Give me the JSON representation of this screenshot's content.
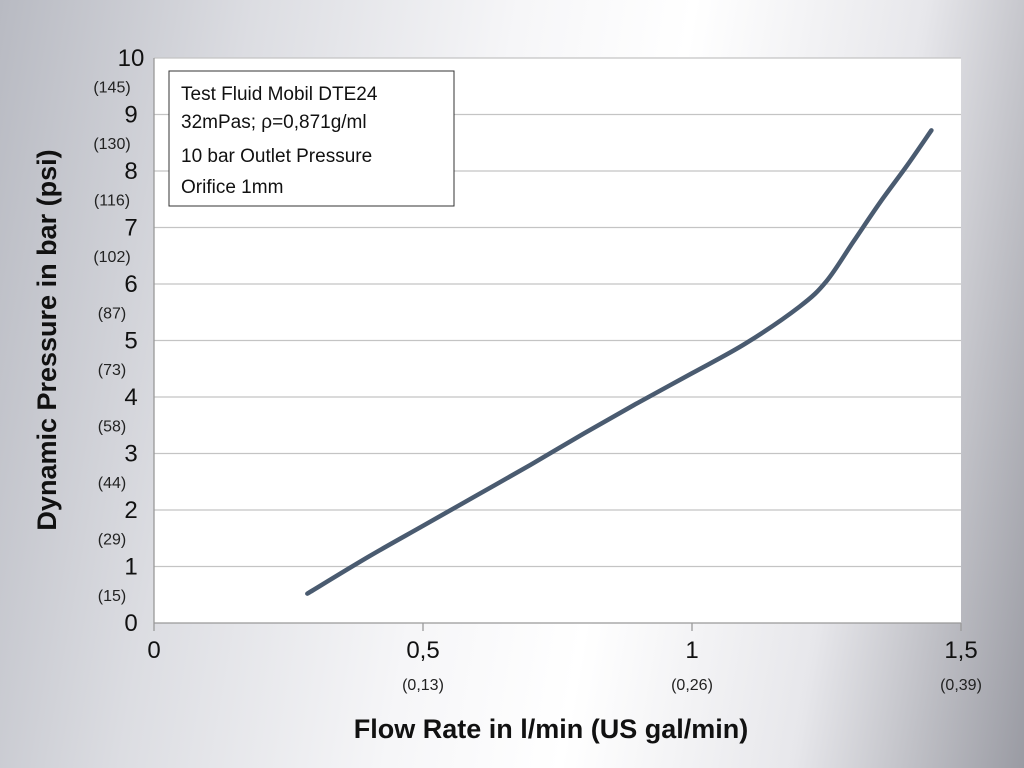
{
  "chart_data": {
    "type": "line",
    "xlabel": "Flow Rate in l/min (US gal/min)",
    "ylabel": "Dynamic Pressure in bar (psi)",
    "xlim": [
      0,
      1.5
    ],
    "ylim": [
      0,
      10
    ],
    "grid": true,
    "x_ticks": [
      {
        "label": "0",
        "sub": ""
      },
      {
        "label": "0,5",
        "sub": "(0,13)"
      },
      {
        "label": "1",
        "sub": "(0,26)"
      },
      {
        "label": "1,5",
        "sub": "(0,39)"
      }
    ],
    "y_ticks": [
      "0",
      "1",
      "2",
      "3",
      "4",
      "5",
      "6",
      "7",
      "8",
      "9",
      "10"
    ],
    "y_ticks_secondary": [
      "(15)",
      "(29)",
      "(44)",
      "(58)",
      "(73)",
      "(87)",
      "(102)",
      "(116)",
      "(130)",
      "(145)"
    ],
    "annotation": [
      "Test Fluid Mobil DTE24",
      "32mPas; ρ=0,871g/ml",
      "10 bar Outlet Pressure",
      "Orifice 1mm"
    ],
    "colors": {
      "line": "#4a5b70",
      "grid": "#c4c4c4",
      "axis": "#999999"
    },
    "series": [
      {
        "x": [
          0.285,
          0.4,
          0.5,
          0.6,
          0.7,
          0.8,
          0.9,
          1.0,
          1.1,
          1.2,
          1.25,
          1.3,
          1.35,
          1.4,
          1.445
        ],
        "y": [
          0.52,
          1.18,
          1.72,
          2.26,
          2.8,
          3.36,
          3.9,
          4.42,
          4.95,
          5.6,
          6.05,
          6.75,
          7.45,
          8.1,
          8.72
        ]
      }
    ]
  }
}
